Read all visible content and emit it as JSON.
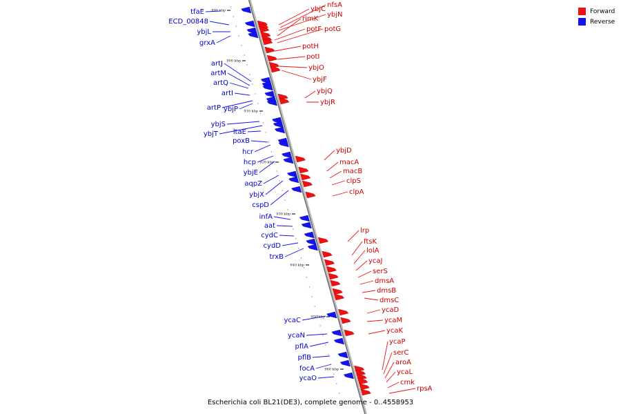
{
  "colors": {
    "forward": "#ee1111",
    "reverse": "#1414ee",
    "backbone": "#999999"
  },
  "legend": [
    {
      "label": "Forward",
      "color": "#ee1111"
    },
    {
      "label": "Reverse",
      "color": "#1414ee"
    }
  ],
  "caption": "Escherichia coli BL21(DE3), complete genome - 0..4558953",
  "ticks": [
    "890 kbp",
    "900 kbp",
    "910 kbp",
    "920 kbp",
    "930 kbp",
    "940 kbp",
    "950 kbp",
    "960 kbp"
  ],
  "forward_genes": [
    "ybjC",
    "nfsA",
    "ybjN",
    "rimK",
    "potF",
    "potG",
    "potH",
    "potI",
    "ybjO",
    "ybjF",
    "ybjQ",
    "ybjR",
    "ybjD",
    "macA",
    "macB",
    "clpS",
    "clpA",
    "lrp",
    "ftsK",
    "lolA",
    "ycaJ",
    "serS",
    "dmsA",
    "dmsB",
    "dmsC",
    "ycaD",
    "ycaM",
    "ycaK",
    "ycaP",
    "serC",
    "aroA",
    "ycaL",
    "cmk",
    "rpsA"
  ],
  "reverse_genes": [
    "tfaE",
    "ECD_00848",
    "ybjL",
    "grxA",
    "artJ",
    "artM",
    "artQ",
    "artI",
    "artP",
    "ybjP",
    "ybjS",
    "ltaE",
    "ybjT",
    "poxB",
    "hcr",
    "hcp",
    "ybjE",
    "aqpZ",
    "ybjX",
    "cspD",
    "infA",
    "aat",
    "cydC",
    "cydD",
    "trxB",
    "ycaC",
    "ycaN",
    "pflA",
    "pflB",
    "focA",
    "ycaO"
  ]
}
